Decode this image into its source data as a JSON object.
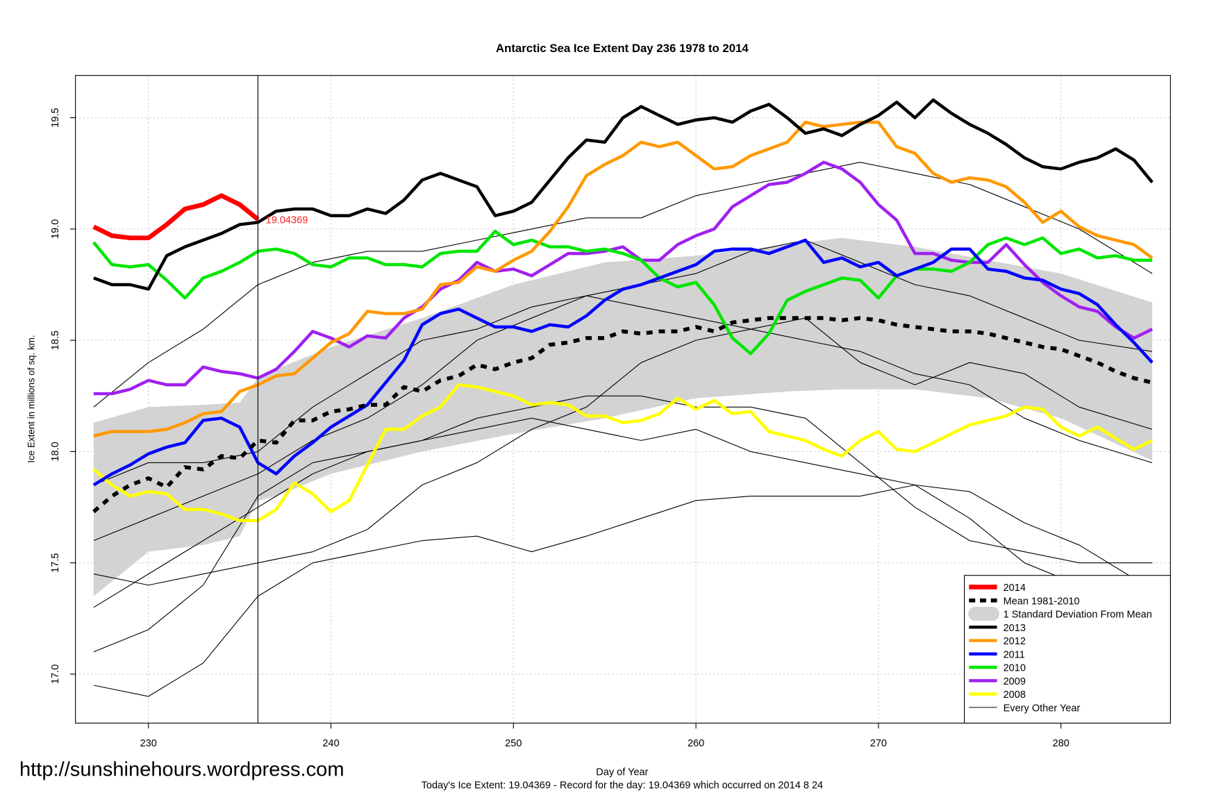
{
  "chart_data": {
    "type": "line",
    "title": "Antarctic Sea Ice Extent Day 236 1978 to 2014",
    "x_label": "Day of Year",
    "y_label": "Ice Extent in millions of sq. km.",
    "footer": "Today's Ice Extent: 19.04369  - Record for the day: 19.04369 which occurred on 2014 8 24",
    "watermark": "http://sunshinehours.wordpress.com",
    "annotation": {
      "text": "19.04369",
      "x": 236,
      "y": 19.04369,
      "color": "#ff2020"
    },
    "vline": 236,
    "grid": true,
    "legend": "bottom-right",
    "xlim": [
      226,
      286
    ],
    "ylim": [
      16.78,
      19.69
    ],
    "xticks": [
      230,
      240,
      250,
      260,
      270,
      280
    ],
    "yticks": [
      {
        "value": 17.0,
        "label": "17.0"
      },
      {
        "value": 17.5,
        "label": "17.5"
      },
      {
        "value": 18.0,
        "label": "18.0"
      },
      {
        "value": 18.5,
        "label": "18.5"
      },
      {
        "value": 19.0,
        "label": "19.0"
      },
      {
        "value": 19.5,
        "label": "19.5"
      }
    ],
    "x": [
      227,
      228,
      229,
      230,
      231,
      232,
      233,
      234,
      235,
      236,
      237,
      238,
      239,
      240,
      241,
      242,
      243,
      244,
      245,
      246,
      247,
      248,
      249,
      250,
      251,
      252,
      253,
      254,
      255,
      256,
      257,
      258,
      259,
      260,
      261,
      262,
      263,
      264,
      265,
      266,
      267,
      268,
      269,
      270,
      271,
      272,
      273,
      274,
      275,
      276,
      277,
      278,
      279,
      280,
      281,
      282,
      283,
      284,
      285
    ],
    "series": [
      {
        "name": "2014",
        "kind": "line",
        "color": "#ff0000",
        "width": 6,
        "x": [
          227,
          228,
          229,
          230,
          231,
          232,
          233,
          234,
          235,
          236
        ],
        "values": [
          19.01,
          18.97,
          18.96,
          18.96,
          19.02,
          19.09,
          19.11,
          19.15,
          19.11,
          19.04369
        ]
      },
      {
        "name": "Mean 1981-2010",
        "kind": "line",
        "color": "#000000",
        "width": 5,
        "dash": true,
        "values": [
          17.73,
          17.8,
          17.85,
          17.88,
          17.84,
          17.93,
          17.92,
          17.98,
          17.97,
          18.05,
          18.04,
          18.14,
          18.14,
          18.18,
          18.19,
          18.21,
          18.21,
          18.29,
          18.27,
          18.32,
          18.34,
          18.39,
          18.37,
          18.4,
          18.42,
          18.48,
          18.49,
          18.51,
          18.51,
          18.54,
          18.53,
          18.54,
          18.54,
          18.56,
          18.54,
          18.58,
          18.59,
          18.6,
          18.6,
          18.6,
          18.6,
          18.59,
          18.6,
          18.59,
          18.57,
          18.56,
          18.55,
          18.54,
          18.54,
          18.53,
          18.51,
          18.49,
          18.47,
          18.46,
          18.43,
          18.4,
          18.36,
          18.33,
          18.31
        ]
      },
      {
        "name": "1 Standard Deviation From Mean",
        "kind": "band",
        "color": "#d3d3d3",
        "x": [
          227,
          230,
          233,
          235,
          236,
          237,
          240,
          245,
          250,
          255,
          260,
          265,
          268,
          272,
          276,
          280,
          285
        ],
        "upper": [
          18.13,
          18.2,
          18.21,
          18.22,
          18.33,
          18.37,
          18.47,
          18.6,
          18.75,
          18.85,
          18.88,
          18.93,
          18.96,
          18.92,
          18.86,
          18.8,
          18.67
        ],
        "lower": [
          17.35,
          17.55,
          17.58,
          17.62,
          17.78,
          17.8,
          17.9,
          18.0,
          18.08,
          18.15,
          18.24,
          18.27,
          18.28,
          18.28,
          18.24,
          18.15,
          17.96
        ]
      },
      {
        "name": "2013",
        "kind": "line",
        "color": "#000000",
        "width": 4,
        "values": [
          18.78,
          18.75,
          18.75,
          18.73,
          18.88,
          18.92,
          18.95,
          18.98,
          19.02,
          19.03,
          19.08,
          19.09,
          19.09,
          19.06,
          19.06,
          19.09,
          19.07,
          19.13,
          19.22,
          19.25,
          19.22,
          19.19,
          19.06,
          19.08,
          19.12,
          19.22,
          19.32,
          19.4,
          19.39,
          19.5,
          19.55,
          19.51,
          19.47,
          19.49,
          19.5,
          19.48,
          19.53,
          19.56,
          19.5,
          19.43,
          19.45,
          19.42,
          19.47,
          19.51,
          19.57,
          19.5,
          19.58,
          19.52,
          19.47,
          19.43,
          19.38,
          19.32,
          19.28,
          19.27,
          19.3,
          19.32,
          19.36,
          19.31,
          19.21
        ]
      },
      {
        "name": "2012",
        "kind": "line",
        "color": "#ff9900",
        "width": 4,
        "values": [
          18.07,
          18.09,
          18.09,
          18.09,
          18.1,
          18.13,
          18.17,
          18.18,
          18.27,
          18.3,
          18.34,
          18.35,
          18.42,
          18.49,
          18.53,
          18.63,
          18.62,
          18.62,
          18.64,
          18.75,
          18.76,
          18.83,
          18.81,
          18.86,
          18.9,
          18.99,
          19.1,
          19.24,
          19.29,
          19.33,
          19.39,
          19.37,
          19.39,
          19.33,
          19.27,
          19.28,
          19.33,
          19.36,
          19.39,
          19.48,
          19.46,
          19.47,
          19.48,
          19.48,
          19.37,
          19.34,
          19.25,
          19.21,
          19.23,
          19.22,
          19.19,
          19.12,
          19.03,
          19.08,
          19.01,
          18.97,
          18.95,
          18.93,
          18.87
        ]
      },
      {
        "name": "2011",
        "kind": "line",
        "color": "#0000ff",
        "width": 4,
        "values": [
          17.85,
          17.9,
          17.94,
          17.99,
          18.02,
          18.04,
          18.14,
          18.15,
          18.11,
          17.95,
          17.9,
          17.98,
          18.04,
          18.11,
          18.16,
          18.21,
          18.31,
          18.41,
          18.57,
          18.62,
          18.64,
          18.6,
          18.56,
          18.56,
          18.54,
          18.57,
          18.56,
          18.61,
          18.68,
          18.73,
          18.75,
          18.78,
          18.81,
          18.84,
          18.9,
          18.91,
          18.91,
          18.89,
          18.92,
          18.95,
          18.85,
          18.87,
          18.83,
          18.85,
          18.79,
          18.82,
          18.85,
          18.91,
          18.91,
          18.82,
          18.81,
          18.78,
          18.77,
          18.73,
          18.71,
          18.66,
          18.57,
          18.49,
          18.4
        ]
      },
      {
        "name": "2010",
        "kind": "line",
        "color": "#00e600",
        "width": 4,
        "values": [
          18.94,
          18.84,
          18.83,
          18.84,
          18.77,
          18.69,
          18.78,
          18.81,
          18.85,
          18.9,
          18.91,
          18.89,
          18.84,
          18.83,
          18.87,
          18.87,
          18.84,
          18.84,
          18.83,
          18.89,
          18.9,
          18.9,
          18.99,
          18.93,
          18.95,
          18.92,
          18.92,
          18.9,
          18.91,
          18.89,
          18.86,
          18.78,
          18.74,
          18.76,
          18.66,
          18.51,
          18.44,
          18.53,
          18.68,
          18.72,
          18.75,
          18.78,
          18.77,
          18.69,
          18.79,
          18.82,
          18.82,
          18.81,
          18.85,
          18.93,
          18.96,
          18.93,
          18.96,
          18.89,
          18.91,
          18.87,
          18.88,
          18.86,
          18.86
        ]
      },
      {
        "name": "2009",
        "kind": "line",
        "color": "#a020f0",
        "width": 4,
        "values": [
          18.26,
          18.26,
          18.28,
          18.32,
          18.3,
          18.3,
          18.38,
          18.36,
          18.35,
          18.33,
          18.37,
          18.45,
          18.54,
          18.51,
          18.47,
          18.52,
          18.51,
          18.6,
          18.65,
          18.73,
          18.77,
          18.85,
          18.81,
          18.82,
          18.79,
          18.84,
          18.89,
          18.89,
          18.9,
          18.92,
          18.86,
          18.86,
          18.93,
          18.97,
          19.0,
          19.1,
          19.15,
          19.2,
          19.21,
          19.25,
          19.3,
          19.27,
          19.21,
          19.11,
          19.04,
          18.89,
          18.89,
          18.86,
          18.85,
          18.85,
          18.93,
          18.84,
          18.76,
          18.7,
          18.65,
          18.63,
          18.56,
          18.51,
          18.55
        ]
      },
      {
        "name": "2008",
        "kind": "line",
        "color": "#ffff00",
        "width": 4,
        "values": [
          17.92,
          17.85,
          17.8,
          17.82,
          17.81,
          17.74,
          17.74,
          17.72,
          17.69,
          17.69,
          17.74,
          17.86,
          17.81,
          17.73,
          17.78,
          17.94,
          18.1,
          18.1,
          18.16,
          18.2,
          18.3,
          18.29,
          18.27,
          18.25,
          18.21,
          18.22,
          18.21,
          18.16,
          18.16,
          18.13,
          18.14,
          18.17,
          18.24,
          18.19,
          18.23,
          18.17,
          18.18,
          18.09,
          18.07,
          18.05,
          18.01,
          17.98,
          18.05,
          18.09,
          18.01,
          18.0,
          18.04,
          18.08,
          18.12,
          18.14,
          18.16,
          18.2,
          18.19,
          18.11,
          18.07,
          18.11,
          18.06,
          18.01,
          18.05
        ]
      },
      {
        "name": "Every Other Year",
        "kind": "multi",
        "color": "#000000",
        "width": 1,
        "x": [
          227,
          230,
          233,
          236,
          239,
          242,
          245,
          248,
          251,
          254,
          257,
          260,
          263,
          266,
          269,
          272,
          275,
          278,
          281,
          285
        ],
        "lines": [
          [
            16.95,
            16.9,
            17.05,
            17.35,
            17.5,
            17.55,
            17.6,
            17.62,
            17.55,
            17.62,
            17.7,
            17.78,
            17.8,
            17.8,
            17.8,
            17.85,
            17.82,
            17.68,
            17.58,
            17.38
          ],
          [
            17.1,
            17.2,
            17.4,
            17.8,
            17.95,
            18.0,
            18.05,
            18.15,
            18.2,
            18.25,
            18.25,
            18.2,
            18.2,
            18.15,
            17.95,
            17.75,
            17.6,
            17.55,
            17.5,
            17.5
          ],
          [
            17.45,
            17.4,
            17.45,
            17.5,
            17.55,
            17.65,
            17.85,
            17.95,
            18.1,
            18.2,
            18.4,
            18.5,
            18.55,
            18.6,
            18.4,
            18.3,
            18.4,
            18.35,
            18.2,
            18.1
          ],
          [
            18.2,
            18.4,
            18.55,
            18.75,
            18.85,
            18.9,
            18.9,
            18.95,
            19.0,
            19.05,
            19.05,
            19.15,
            19.2,
            19.25,
            19.3,
            19.25,
            19.2,
            19.1,
            19.0,
            18.8
          ],
          [
            17.6,
            17.7,
            17.8,
            17.9,
            18.05,
            18.15,
            18.3,
            18.5,
            18.6,
            18.7,
            18.75,
            18.8,
            18.9,
            18.95,
            18.85,
            18.75,
            18.7,
            18.6,
            18.5,
            18.45
          ],
          [
            17.85,
            17.95,
            17.95,
            18.0,
            18.2,
            18.35,
            18.5,
            18.55,
            18.65,
            18.7,
            18.65,
            18.6,
            18.55,
            18.5,
            18.45,
            18.35,
            18.3,
            18.15,
            18.05,
            17.95
          ],
          [
            17.3,
            17.45,
            17.6,
            17.75,
            17.9,
            18.0,
            18.05,
            18.1,
            18.15,
            18.1,
            18.05,
            18.1,
            18.0,
            17.95,
            17.9,
            17.85,
            17.7,
            17.5,
            17.4,
            17.3
          ]
        ]
      }
    ]
  }
}
